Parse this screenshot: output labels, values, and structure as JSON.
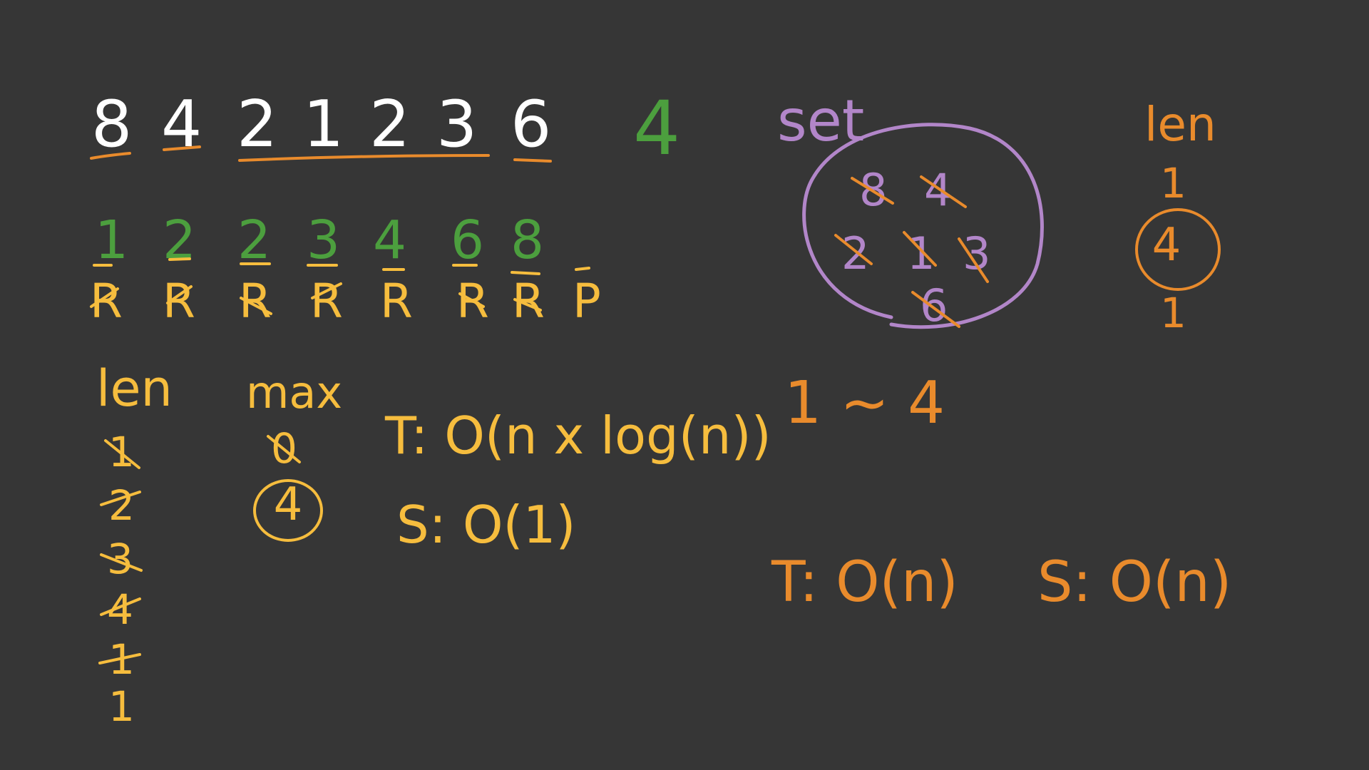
{
  "board": {
    "array_values": [
      "8",
      "4",
      "2",
      "1",
      "2",
      "3",
      "6"
    ],
    "target": "4",
    "sorted_values": [
      "1",
      "2",
      "2",
      "3",
      "4",
      "6",
      "8"
    ],
    "pointer_labels": [
      "R",
      "R",
      "R",
      "R",
      "R",
      "R",
      "R",
      "P"
    ],
    "left_notes": {
      "len_label": "len",
      "len_values": [
        "1",
        "2",
        "3",
        "4",
        "1",
        "1"
      ],
      "max_label": "max",
      "max_values": [
        "0",
        "4"
      ],
      "time": "T: O(n x log(n))",
      "space": "S: O(1)"
    },
    "right_notes": {
      "set_label": "set",
      "set_items": [
        "8",
        "4",
        "2",
        "1",
        "3",
        "6"
      ],
      "len_label": "len",
      "len_values": [
        "1",
        "4",
        "1"
      ],
      "range": "1 ~ 4",
      "time": "T: O(n)",
      "space": "S: O(n)"
    },
    "colors": {
      "background": "#363636",
      "white": "#ffffff",
      "orange": "#e98b2c",
      "yellow": "#f6bd3e",
      "green": "#4c9f3e",
      "purple": "#b286c9"
    }
  }
}
